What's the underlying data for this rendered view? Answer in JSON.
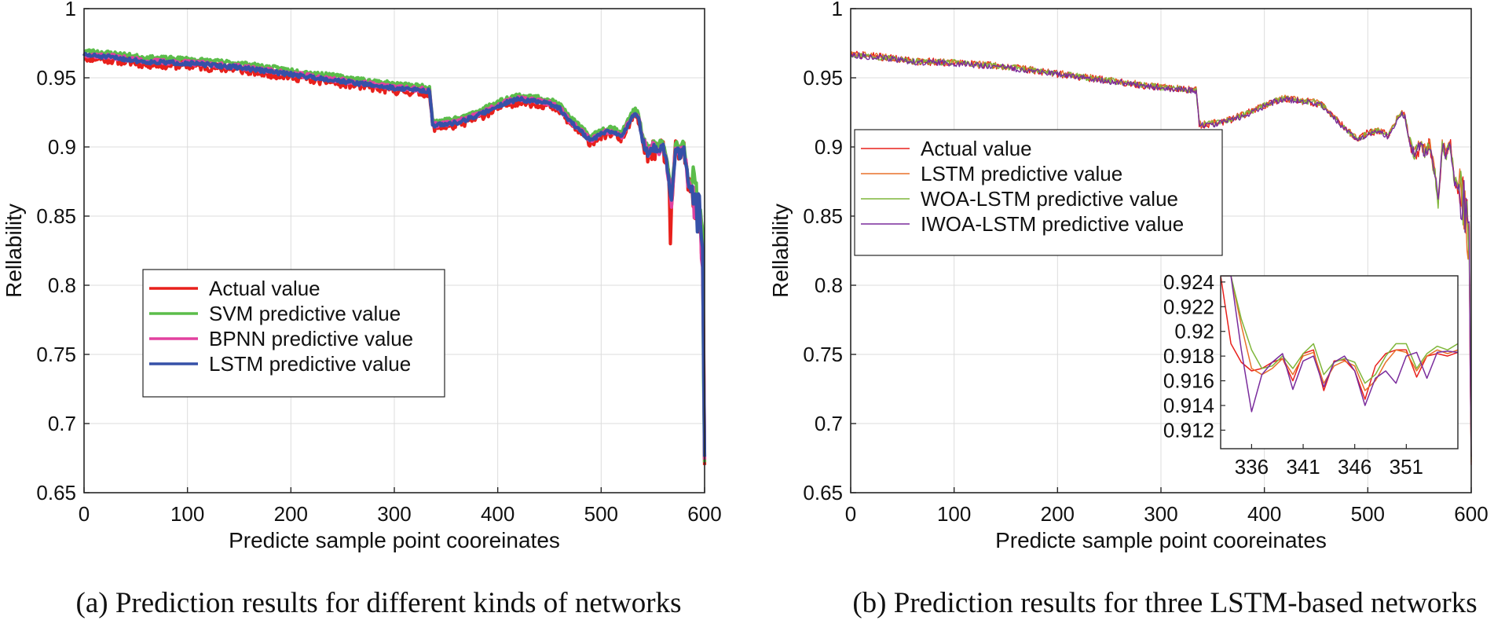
{
  "chart_data": [
    {
      "type": "line",
      "panel": "a",
      "caption": "(a) Prediction results for different kinds of networks",
      "xlabel": "Predicte sample point cooreinates",
      "ylabel": "Rellability",
      "xlim": [
        0,
        600
      ],
      "ylim": [
        0.65,
        1
      ],
      "xticks": [
        0,
        100,
        200,
        300,
        400,
        500,
        600
      ],
      "yticks": [
        0.65,
        0.7,
        0.75,
        0.8,
        0.85,
        0.9,
        0.95,
        1
      ],
      "ytick_labels": [
        "0.65",
        "0.7",
        "0.75",
        "0.8",
        "0.85",
        "0.9",
        "0.95",
        "1"
      ],
      "grid": true,
      "legend_position": "lower-left",
      "base_curve": {
        "x": [
          0,
          30,
          60,
          100,
          150,
          200,
          250,
          300,
          334,
          337,
          340,
          360,
          380,
          400,
          410,
          420,
          430,
          440,
          450,
          460,
          470,
          480,
          490,
          500,
          510,
          520,
          528,
          533,
          536,
          540,
          545,
          550,
          555,
          560,
          565,
          568,
          572,
          576,
          580,
          584,
          588,
          592,
          595,
          598,
          600
        ],
        "y": [
          0.967,
          0.965,
          0.962,
          0.961,
          0.958,
          0.953,
          0.948,
          0.943,
          0.941,
          0.917,
          0.916,
          0.918,
          0.923,
          0.93,
          0.933,
          0.935,
          0.934,
          0.933,
          0.932,
          0.928,
          0.919,
          0.912,
          0.905,
          0.91,
          0.912,
          0.908,
          0.92,
          0.925,
          0.922,
          0.905,
          0.895,
          0.9,
          0.897,
          0.902,
          0.88,
          0.86,
          0.9,
          0.895,
          0.9,
          0.875,
          0.87,
          0.86,
          0.85,
          0.83,
          0.67
        ]
      },
      "series": [
        {
          "name": "Actual value",
          "color": "#e8201c",
          "noise": 0.0032,
          "offset": -0.002,
          "seed": 11
        },
        {
          "name": "SVM predictive value",
          "color": "#5bbd4a",
          "noise": 0.0016,
          "offset": 0.0025,
          "seed": 23
        },
        {
          "name": "BPNN predictive value",
          "color": "#e2419f",
          "noise": 0.0018,
          "offset": 0.0,
          "seed": 37
        },
        {
          "name": "LSTM predictive value",
          "color": "#3651a8",
          "noise": 0.0015,
          "offset": -0.0005,
          "seed": 51
        }
      ]
    },
    {
      "type": "line",
      "panel": "b",
      "caption": "(b) Prediction results for three LSTM-based networks",
      "xlabel": "Predicte sample point cooreinates",
      "ylabel": "Rellability",
      "xlim": [
        0,
        600
      ],
      "ylim": [
        0.65,
        1
      ],
      "xticks": [
        0,
        100,
        200,
        300,
        400,
        500,
        600
      ],
      "yticks": [
        0.65,
        0.7,
        0.75,
        0.8,
        0.85,
        0.9,
        0.95,
        1
      ],
      "ytick_labels": [
        "0.65",
        "0.7",
        "0.75",
        "0.8",
        "0.85",
        "0.9",
        "0.95",
        "1"
      ],
      "grid": true,
      "legend_position": "top-left",
      "base_curve": {
        "x": [
          0,
          30,
          60,
          100,
          150,
          200,
          250,
          300,
          334,
          337,
          340,
          360,
          380,
          400,
          410,
          420,
          430,
          440,
          450,
          460,
          470,
          480,
          490,
          500,
          510,
          520,
          528,
          533,
          536,
          540,
          545,
          550,
          555,
          560,
          565,
          568,
          572,
          576,
          580,
          584,
          588,
          592,
          595,
          598,
          600
        ],
        "y": [
          0.967,
          0.965,
          0.962,
          0.961,
          0.958,
          0.953,
          0.948,
          0.943,
          0.941,
          0.917,
          0.916,
          0.918,
          0.923,
          0.93,
          0.933,
          0.935,
          0.934,
          0.933,
          0.932,
          0.928,
          0.919,
          0.912,
          0.905,
          0.91,
          0.912,
          0.908,
          0.92,
          0.925,
          0.922,
          0.905,
          0.895,
          0.9,
          0.897,
          0.902,
          0.88,
          0.86,
          0.9,
          0.895,
          0.9,
          0.875,
          0.87,
          0.86,
          0.85,
          0.83,
          0.67
        ]
      },
      "series": [
        {
          "name": "Actual value",
          "color": "#e8201c",
          "noise": 0.0028,
          "offset": 0.0,
          "seed": 71
        },
        {
          "name": "LSTM predictive value",
          "color": "#e8702a",
          "noise": 0.0022,
          "offset": 0.0005,
          "seed": 83
        },
        {
          "name": "WOA-LSTM predictive value",
          "color": "#7fb63a",
          "noise": 0.0022,
          "offset": 0.0,
          "seed": 97
        },
        {
          "name": "IWOA-LSTM predictive value",
          "color": "#7a2c9c",
          "noise": 0.0022,
          "offset": -0.0005,
          "seed": 113
        }
      ],
      "inset": {
        "xlim": [
          333,
          356
        ],
        "ylim": [
          0.9105,
          0.9245
        ],
        "xticks": [
          336,
          341,
          346,
          351
        ],
        "yticks": [
          0.912,
          0.914,
          0.916,
          0.918,
          0.92,
          0.922,
          0.924
        ],
        "ytick_labels": [
          "0.912",
          "0.914",
          "0.916",
          "0.918",
          "0.92",
          "0.922",
          "0.924"
        ],
        "x": [
          333,
          334,
          335,
          336,
          337,
          338,
          339,
          340,
          341,
          342,
          343,
          344,
          345,
          346,
          347,
          348,
          349,
          350,
          351,
          352,
          353,
          354,
          355,
          356
        ],
        "series": [
          {
            "name": "Actual value",
            "y": [
              0.9245,
              0.919,
              0.9175,
              0.9168,
              0.917,
              0.9175,
              0.9178,
              0.916,
              0.9182,
              0.9185,
              0.9152,
              0.9176,
              0.9177,
              0.9168,
              0.9145,
              0.9172,
              0.9182,
              0.9185,
              0.9185,
              0.9163,
              0.918,
              0.9182,
              0.918,
              0.9183
            ]
          },
          {
            "name": "LSTM predictive value",
            "y": [
              0.9245,
              0.9245,
              0.9205,
              0.917,
              0.9165,
              0.917,
              0.9178,
              0.9165,
              0.918,
              0.9183,
              0.9158,
              0.9172,
              0.9176,
              0.9172,
              0.9152,
              0.916,
              0.9175,
              0.9185,
              0.9183,
              0.9168,
              0.918,
              0.9185,
              0.9182,
              0.9185
            ]
          },
          {
            "name": "WOA-LSTM predictive value",
            "y": [
              0.9245,
              0.9245,
              0.921,
              0.9185,
              0.917,
              0.9172,
              0.918,
              0.917,
              0.9182,
              0.919,
              0.9165,
              0.9175,
              0.9178,
              0.9175,
              0.9158,
              0.9165,
              0.918,
              0.919,
              0.919,
              0.917,
              0.9182,
              0.9188,
              0.9185,
              0.919
            ]
          },
          {
            "name": "IWOA-LSTM predictive value",
            "y": [
              0.9245,
              0.9245,
              0.9185,
              0.9135,
              0.9165,
              0.9175,
              0.9182,
              0.9153,
              0.9176,
              0.918,
              0.9155,
              0.9175,
              0.918,
              0.9168,
              0.914,
              0.9162,
              0.9168,
              0.9158,
              0.918,
              0.9183,
              0.9162,
              0.9183,
              0.9184,
              0.9183
            ]
          }
        ]
      }
    }
  ]
}
